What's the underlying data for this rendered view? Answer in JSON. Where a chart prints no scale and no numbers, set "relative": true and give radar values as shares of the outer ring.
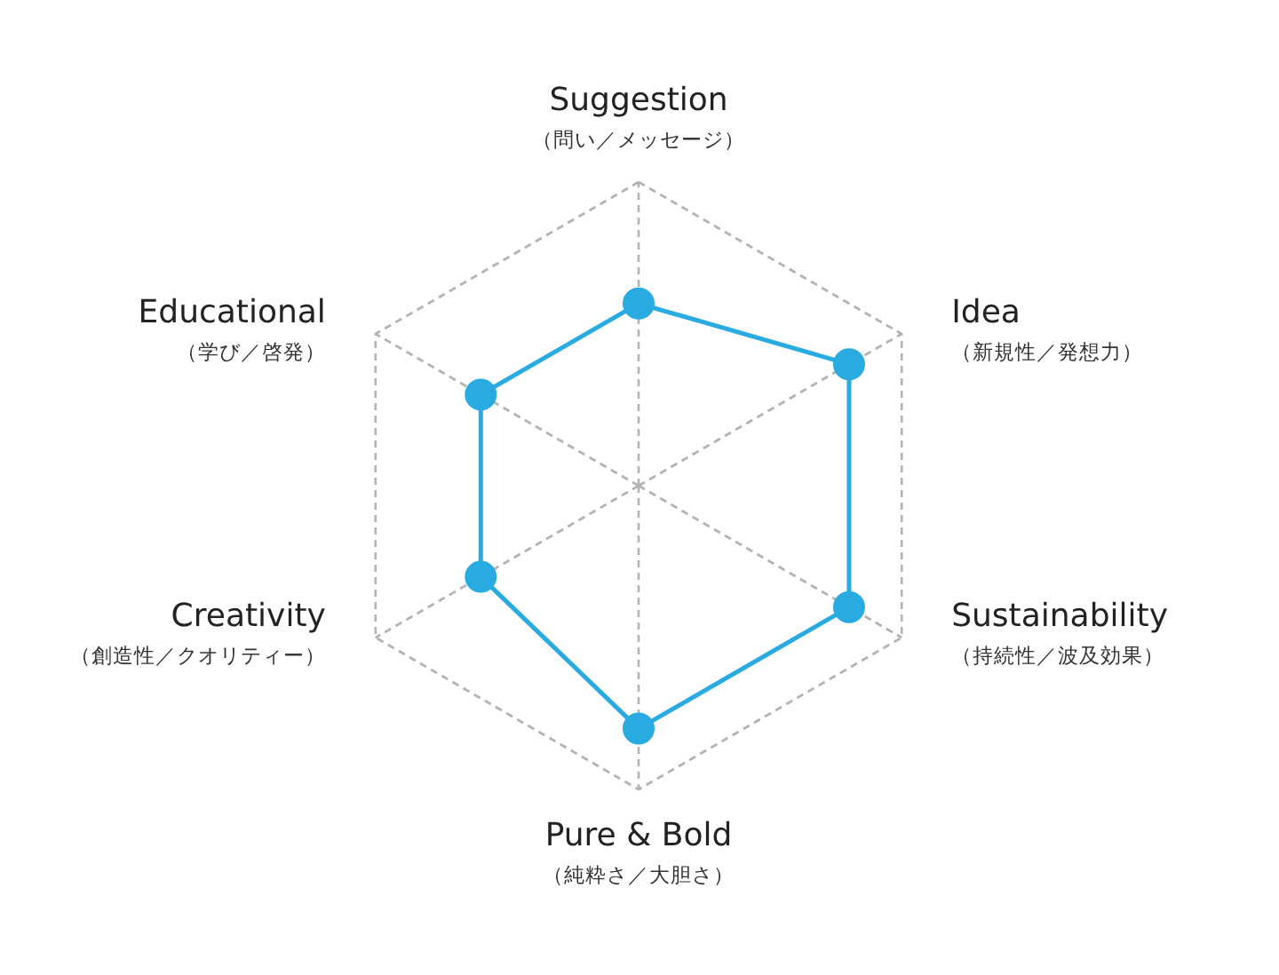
{
  "chart_data": {
    "type": "radar",
    "relative": true,
    "grid": true,
    "marker": "circle",
    "line_style": "solid",
    "categories": [
      "Suggestion\n（問い／メッセージ）",
      "Idea\n（新規性／発想力）",
      "Sustainability\n（持続性／波及効果）",
      "Pure & Bold\n（純粋さ／大胆さ）",
      "Creativity\n（創造性／クオリティー）",
      "Educational\n（学び／啓発）"
    ],
    "series": [
      {
        "color": "#29abe2",
        "values": [
          0.6,
          0.8,
          0.8,
          0.8,
          0.6,
          0.6
        ]
      }
    ]
  }
}
